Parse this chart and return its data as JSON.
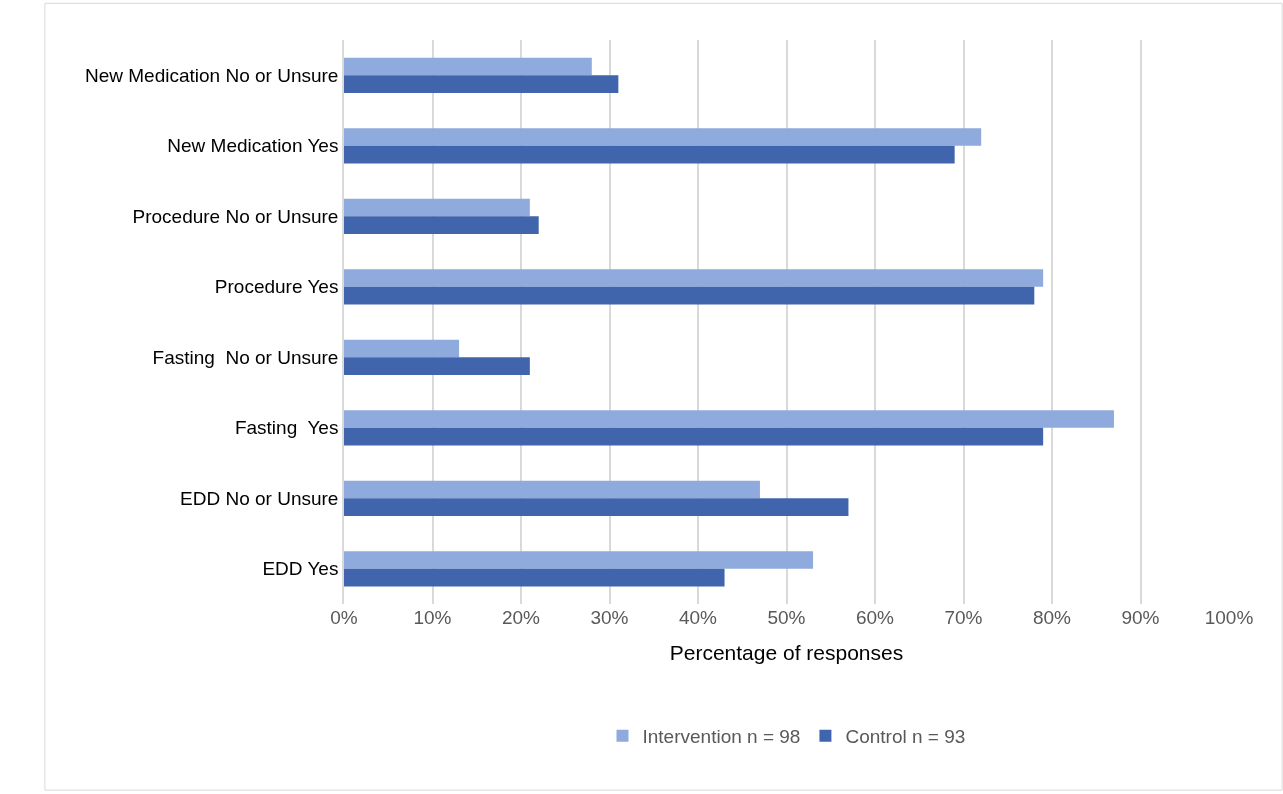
{
  "chart_data": {
    "type": "bar",
    "orientation": "horizontal",
    "xlabel": "Percentage of responses",
    "categories": [
      "New Medication No or Unsure",
      "New Medication Yes",
      "Procedure No or Unsure",
      "Procedure Yes",
      "Fasting  No or Unsure",
      "Fasting  Yes",
      "EDD No or Unsure",
      "EDD Yes"
    ],
    "series": [
      {
        "name": "Intervention n = 98",
        "color": "#8faadc",
        "values": [
          28,
          72,
          21,
          79,
          13,
          87,
          47,
          53
        ]
      },
      {
        "name": "Control n = 93",
        "color": "#4065ad",
        "values": [
          31,
          69,
          22,
          78,
          21,
          79,
          57,
          43
        ]
      }
    ],
    "xlim": [
      0,
      100
    ],
    "xticks": [
      {
        "value": 0,
        "label": "0%"
      },
      {
        "value": 10,
        "label": "10%"
      },
      {
        "value": 20,
        "label": "20%"
      },
      {
        "value": 30,
        "label": "30%"
      },
      {
        "value": 40,
        "label": "40%"
      },
      {
        "value": 50,
        "label": "50%"
      },
      {
        "value": 60,
        "label": "60%"
      },
      {
        "value": 70,
        "label": "70%"
      },
      {
        "value": 80,
        "label": "80%"
      },
      {
        "value": 90,
        "label": "90%"
      },
      {
        "value": 100,
        "label": "100%"
      }
    ],
    "grid": "x",
    "legend": "bottom"
  }
}
